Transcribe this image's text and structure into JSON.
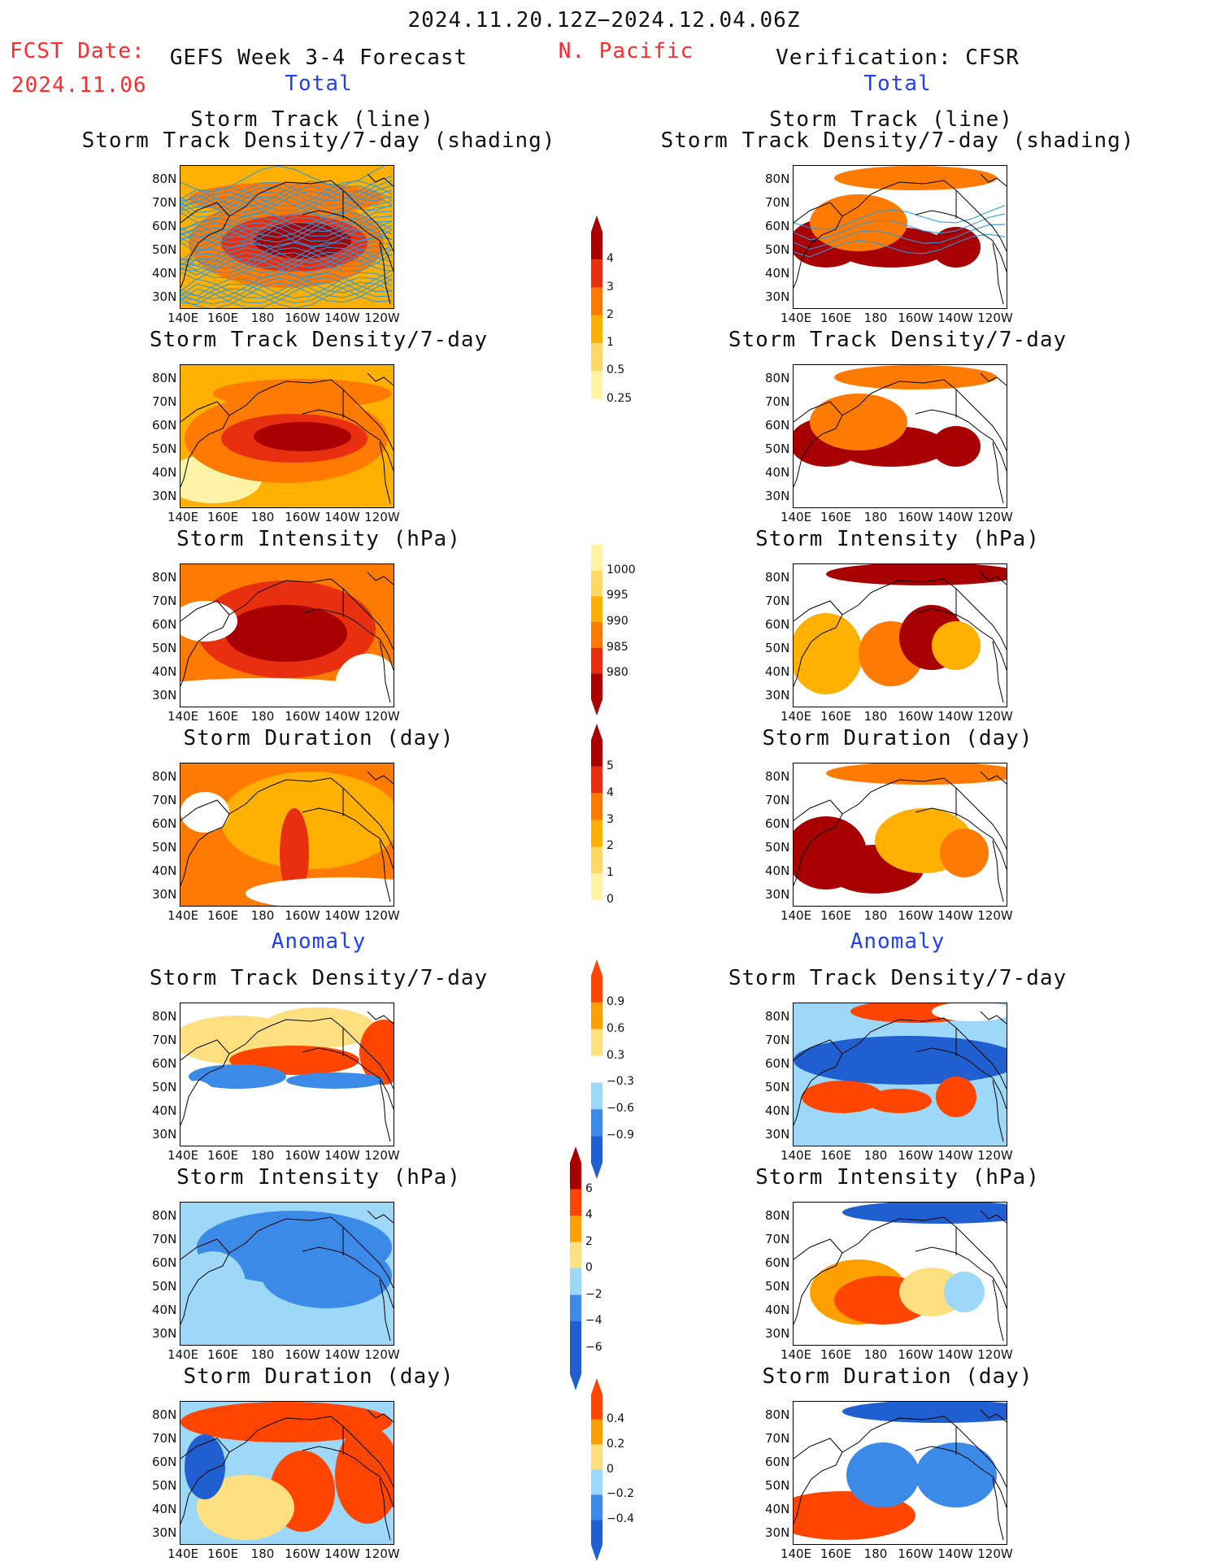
{
  "header": {
    "date_range": "2024.11.20.12Z−2024.12.04.06Z",
    "fcst_label": "FCST Date:",
    "fcst_date": "2024.11.06",
    "model_title": "GEFS Week 3-4 Forecast",
    "region": "N. Pacific",
    "verification": "Verification: CFSR",
    "total_left": "Total",
    "total_right": "Total",
    "anomaly_left": "Anomaly",
    "anomaly_right": "Anomaly"
  },
  "panel_titles": {
    "track_line": "Storm Track (line)",
    "track_density_shading": "Storm Track Density/7-day (shading)",
    "track_density": "Storm Track Density/7-day",
    "intensity": "Storm Intensity (hPa)",
    "duration": "Storm Duration (day)"
  },
  "axes": {
    "lat_labels": [
      "80N",
      "70N",
      "60N",
      "50N",
      "40N",
      "30N"
    ],
    "lon_labels": [
      "140E",
      "160E",
      "180",
      "160W",
      "140W",
      "120W"
    ]
  },
  "colorbars": {
    "density_total": [
      "4",
      "3",
      "2",
      "1",
      "0.5",
      "0.25"
    ],
    "intensity_total": [
      "1000",
      "995",
      "990",
      "985",
      "980"
    ],
    "duration_total": [
      "5",
      "4",
      "3",
      "2",
      "1",
      "0"
    ],
    "density_anom": [
      "0.9",
      "0.6",
      "0.3",
      "−0.3",
      "−0.6",
      "−0.9"
    ],
    "intensity_anom": [
      "6",
      "4",
      "2",
      "0",
      "−2",
      "−4",
      "−6"
    ],
    "duration_anom": [
      "0.4",
      "0.2",
      "0",
      "−0.2",
      "−0.4"
    ]
  },
  "colors": {
    "header_red": "#ff2a2a",
    "header_blue": "#1f3fff",
    "warm_scale": [
      "#fff3a8",
      "#ffd966",
      "#ffb000",
      "#ff7a00",
      "#e83010",
      "#a80000"
    ],
    "anom_scale": [
      "#1f5fd0",
      "#3c8ae8",
      "#9ed8f8",
      "#ffffff",
      "#ffe080",
      "#ffa000",
      "#ff4500"
    ],
    "track_line": "#2a9be0"
  }
}
